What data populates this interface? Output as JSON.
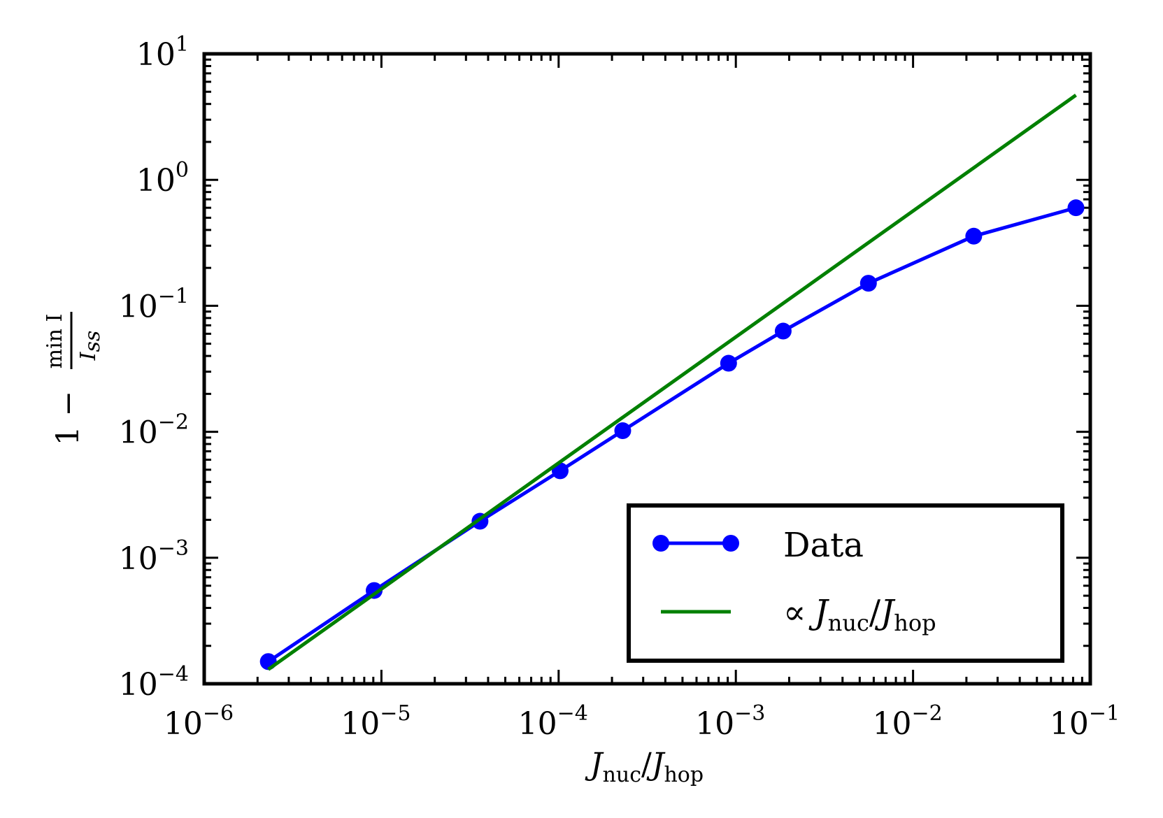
{
  "chart_data": {
    "type": "line",
    "xscale": "log",
    "yscale": "log",
    "xlim": [
      1e-06,
      0.1
    ],
    "ylim": [
      0.0001,
      10.0
    ],
    "x_ticks": [
      {
        "base": "10",
        "exp": "−6"
      },
      {
        "base": "10",
        "exp": "−5"
      },
      {
        "base": "10",
        "exp": "−4"
      },
      {
        "base": "10",
        "exp": "−3"
      },
      {
        "base": "10",
        "exp": "−2"
      },
      {
        "base": "10",
        "exp": "−1"
      }
    ],
    "y_ticks": [
      {
        "base": "10",
        "exp": "−4"
      },
      {
        "base": "10",
        "exp": "−3"
      },
      {
        "base": "10",
        "exp": "−2"
      },
      {
        "base": "10",
        "exp": "−1"
      },
      {
        "base": "10",
        "exp": "0"
      },
      {
        "base": "10",
        "exp": "1"
      }
    ],
    "xlabel": {
      "j": "J",
      "sub1": "nuc",
      "slash": "/",
      "j2": "J",
      "sub2": "hop"
    },
    "ylabel": {
      "prefix": "1 −",
      "num": "min I",
      "den": "I",
      "den_sub": "ss"
    },
    "series": [
      {
        "name": "Data",
        "color": "#0000ff",
        "marker": "circle",
        "x": [
          2.3e-06,
          9.1e-06,
          3.6e-05,
          0.000102,
          0.00023,
          0.00091,
          0.00185,
          0.0056,
          0.022,
          0.083
        ],
        "y": [
          0.00015,
          0.00055,
          0.00195,
          0.0049,
          0.0102,
          0.035,
          0.063,
          0.151,
          0.357,
          0.6
        ]
      },
      {
        "name": "∝ J_nuc/J_hop",
        "color": "#008000",
        "marker": "none",
        "x": [
          2.3e-06,
          0.083
        ],
        "y": [
          0.00013,
          4.7
        ]
      }
    ],
    "legend": {
      "position": "lower-right",
      "data_label": "Data",
      "prop_symbol": "∝",
      "prop_j": "J",
      "prop_sub1": "nuc",
      "prop_slash": "/",
      "prop_j2": "J",
      "prop_sub2": "hop"
    }
  }
}
